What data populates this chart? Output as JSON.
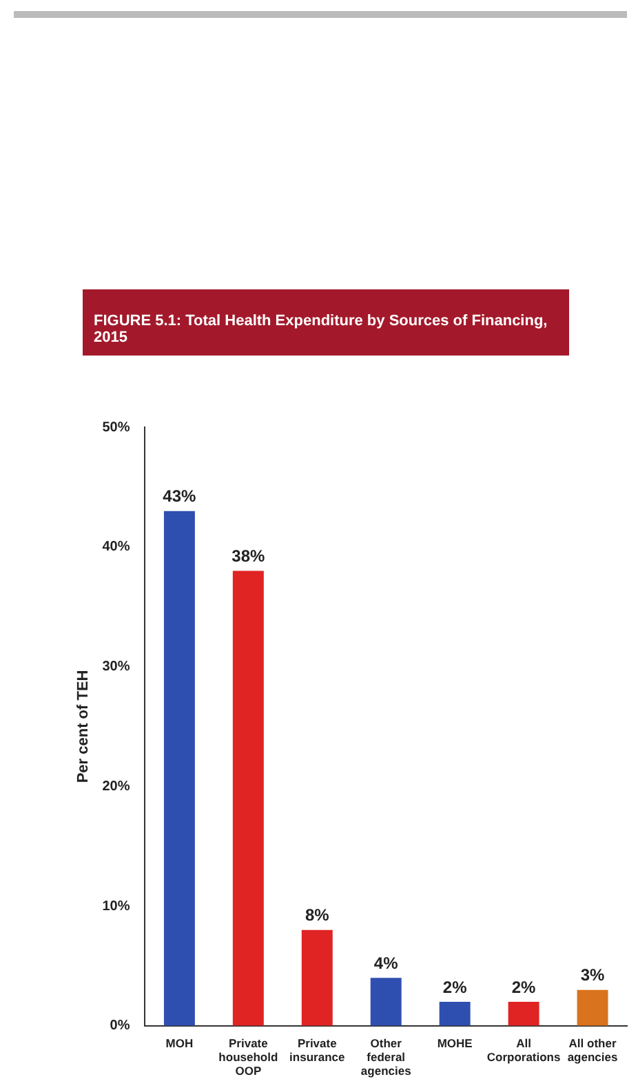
{
  "chart_data": {
    "type": "bar",
    "title": "FIGURE 5.1: Total Health Expenditure by Sources of Financing, 2015",
    "ylabel": "Per cent of TEH",
    "categories": [
      "MOH",
      "Private household OOP",
      "Private insurance",
      "Other federal agencies",
      "MOHE",
      "All Corporations",
      "All other agencies"
    ],
    "values": [
      43,
      38,
      8,
      4,
      2,
      2,
      3
    ],
    "colors": [
      "#2f4fb0",
      "#e02424",
      "#e02424",
      "#2f4fb0",
      "#2f4fb0",
      "#e02424",
      "#d9731e"
    ],
    "ylim": [
      0,
      50
    ],
    "yticks": [
      {
        "value": 0,
        "label": "0%"
      },
      {
        "value": 10,
        "label": "10%"
      },
      {
        "value": 20,
        "label": "20%"
      },
      {
        "value": 30,
        "label": "30%"
      },
      {
        "value": 40,
        "label": "40%"
      },
      {
        "value": 50,
        "label": "50%"
      }
    ],
    "value_labels": [
      "43%",
      "38%",
      "8%",
      "4%",
      "2%",
      "2%",
      "3%"
    ],
    "grid": false,
    "legend": false
  }
}
